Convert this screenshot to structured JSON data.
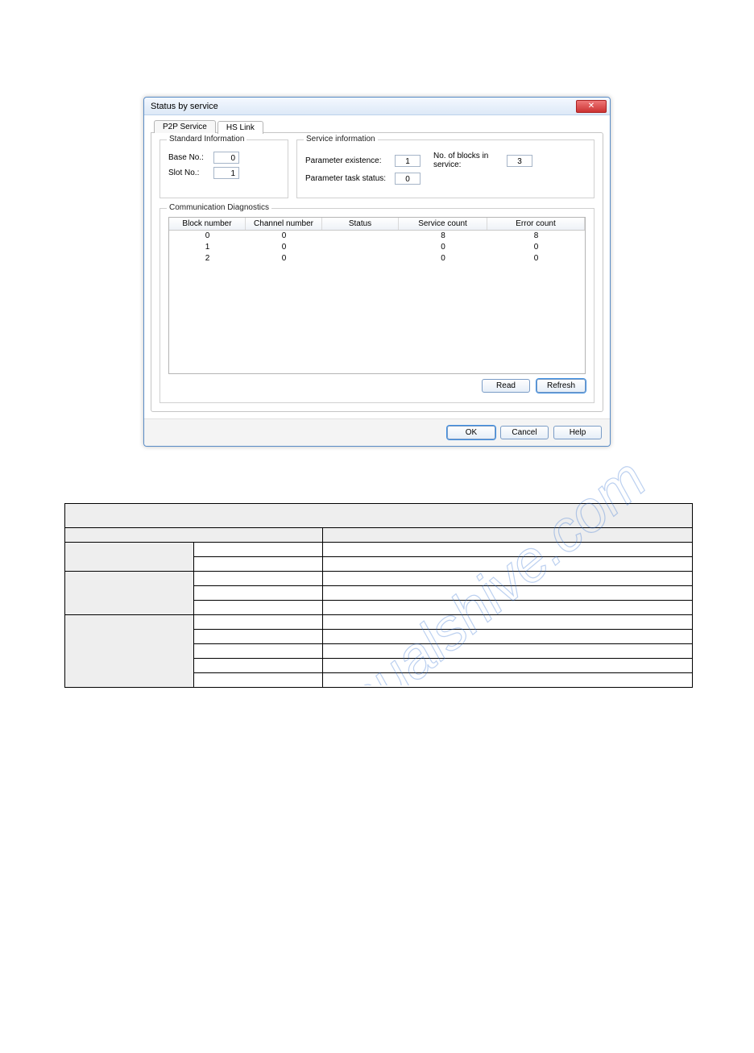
{
  "watermark_text": "manualshive.com",
  "dialog": {
    "title": "Status by service",
    "close_glyph": "✕",
    "tabs": [
      {
        "label": "P2P Service",
        "active": false
      },
      {
        "label": "HS Link",
        "active": true
      }
    ],
    "groups": {
      "standard": {
        "legend": "Standard Information",
        "base_label": "Base No.:",
        "base_value": "0",
        "slot_label": "Slot No.:",
        "slot_value": "1"
      },
      "service": {
        "legend": "Service information",
        "param_exist_label": "Parameter existence:",
        "param_exist_value": "1",
        "blocks_label": "No. of blocks in service:",
        "blocks_value": "3",
        "task_status_label": "Parameter task status:",
        "task_status_value": "0"
      },
      "diag": {
        "legend": "Communication Diagnostics",
        "cols": [
          "Block number",
          "Channel number",
          "Status",
          "Service count",
          "Error count"
        ],
        "rows": [
          {
            "c0": "0",
            "c1": "0",
            "c2": "",
            "c3": "8",
            "c4": "8"
          },
          {
            "c0": "1",
            "c1": "0",
            "c2": "",
            "c3": "0",
            "c4": "0"
          },
          {
            "c0": "2",
            "c1": "0",
            "c2": "",
            "c3": "0",
            "c4": "0"
          }
        ]
      }
    },
    "buttons": {
      "read": "Read",
      "refresh": "Refresh",
      "ok": "OK",
      "cancel": "Cancel",
      "help": "Help"
    }
  },
  "spec": {
    "cols": [
      "",
      "",
      "",
      ""
    ],
    "rows": [
      {
        "c0": "",
        "span0": 4,
        "tall": true
      },
      {
        "c0": "",
        "span0": 2,
        "c2": "",
        "span2": 2
      },
      {
        "c0": "",
        "rowspan0": 2,
        "c1": "",
        "c2": "",
        "span2": 2
      },
      {
        "c1": "",
        "c2": "",
        "span2": 2
      },
      {
        "c0": "",
        "rowspan0": 3,
        "c1": "",
        "c2": "",
        "span2": 2
      },
      {
        "c1": "",
        "c2": "",
        "span2": 2
      },
      {
        "c1": "",
        "c2": "",
        "span2": 2
      },
      {
        "c0": "",
        "rowspan0": 5,
        "c1": "",
        "c2": "",
        "span2": 2
      },
      {
        "c1": "",
        "c2": "",
        "span2": 2
      },
      {
        "c1": "",
        "c2": "",
        "span2": 2
      },
      {
        "c1": "",
        "c2": "",
        "span2": 2
      },
      {
        "c1": "",
        "c2": "",
        "span2": 2
      }
    ]
  }
}
